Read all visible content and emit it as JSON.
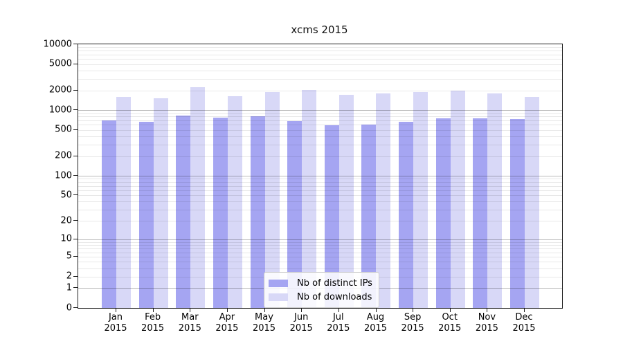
{
  "figure": {
    "background": "#ffffff",
    "axes_frame_color": "#1c1c1c"
  },
  "chart_data": {
    "type": "bar",
    "title": "xcms 2015",
    "xlabel": "",
    "ylabel": "",
    "y_scale": "log1p",
    "ylim": [
      0,
      10000
    ],
    "yticks": [
      0,
      1,
      2,
      5,
      10,
      20,
      50,
      100,
      200,
      500,
      1000,
      2000,
      5000,
      10000
    ],
    "grid": "horizontal major+minor, drawn over bars",
    "major_grid_decades": [
      1,
      10,
      100,
      1000
    ],
    "legend_position": "lower center",
    "categories": [
      "Jan",
      "Feb",
      "Mar",
      "Apr",
      "May",
      "Jun",
      "Jul",
      "Aug",
      "Sep",
      "Oct",
      "Nov",
      "Dec"
    ],
    "category_year": "2015",
    "series": [
      {
        "name": "Nb of distinct IPs",
        "color": "#a5a5f2",
        "values": [
          700,
          665,
          830,
          770,
          810,
          680,
          590,
          605,
          665,
          750,
          750,
          735
        ]
      },
      {
        "name": "Nb of downloads",
        "color": "#d8d8f7",
        "values": [
          1590,
          1520,
          2230,
          1630,
          1890,
          2030,
          1710,
          1800,
          1890,
          1980,
          1800,
          1590
        ]
      }
    ]
  }
}
